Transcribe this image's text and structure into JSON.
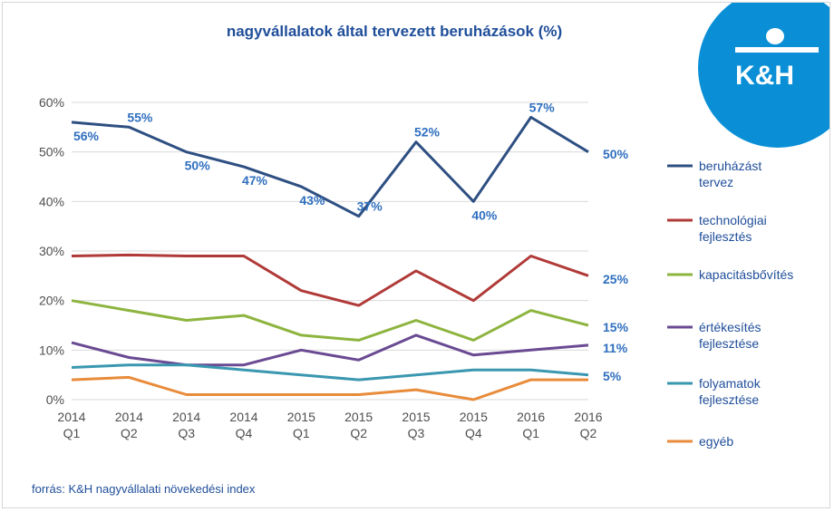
{
  "chart_data": {
    "type": "line",
    "title": "nagyvállalatok által tervezett beruházások (%)",
    "categories": [
      [
        "2014",
        "Q1"
      ],
      [
        "2014",
        "Q2"
      ],
      [
        "2014",
        "Q3"
      ],
      [
        "2014",
        "Q4"
      ],
      [
        "2015",
        "Q1"
      ],
      [
        "2015",
        "Q2"
      ],
      [
        "2015",
        "Q3"
      ],
      [
        "2015",
        "Q4"
      ],
      [
        "2016",
        "Q1"
      ],
      [
        "2016",
        "Q2"
      ]
    ],
    "ylim": [
      0,
      60
    ],
    "yticks": [
      "0%",
      "10%",
      "20%",
      "30%",
      "40%",
      "50%",
      "60%"
    ],
    "grid": true,
    "legend_position": "right",
    "series": [
      {
        "name": "beruházást tervez",
        "color": "#2e4f82",
        "values": [
          56,
          55,
          50,
          47,
          43,
          37,
          52,
          40,
          57,
          50
        ]
      },
      {
        "name": "technológiai fejlesztés",
        "color": "#b03a38",
        "values": [
          29,
          29.2,
          29,
          29,
          22,
          19,
          26,
          20,
          29,
          25
        ]
      },
      {
        "name": "kapacitásbővítés",
        "color": "#8db43e",
        "values": [
          20,
          18,
          16,
          17,
          13,
          12,
          16,
          12,
          18,
          15
        ]
      },
      {
        "name": "értékesítés fejlesztése",
        "color": "#6a4a93",
        "values": [
          11.5,
          8.5,
          7,
          7,
          10,
          8,
          13,
          9,
          10,
          11
        ]
      },
      {
        "name": "folyamatok fejlesztése",
        "color": "#3a97b0",
        "values": [
          6.5,
          7,
          7,
          6,
          5,
          4,
          5,
          6,
          6,
          5
        ]
      },
      {
        "name": "egyéb",
        "color": "#e88b3a",
        "values": [
          4,
          4.5,
          1,
          1,
          1,
          1,
          2,
          0,
          4,
          4
        ]
      }
    ],
    "data_labels": {
      "beruházást tervez": [
        "56%",
        "55%",
        "50%",
        "47%",
        "43%",
        "37%",
        "52%",
        "40%",
        "57%",
        "50%"
      ],
      "end_labels": [
        "50%",
        "25%",
        "15%",
        "11%",
        "5%"
      ]
    }
  },
  "source": "forrás: K&H nagyvállalati növekedési index",
  "logo": {
    "text": "K&H",
    "color": "#0a8fd6"
  }
}
